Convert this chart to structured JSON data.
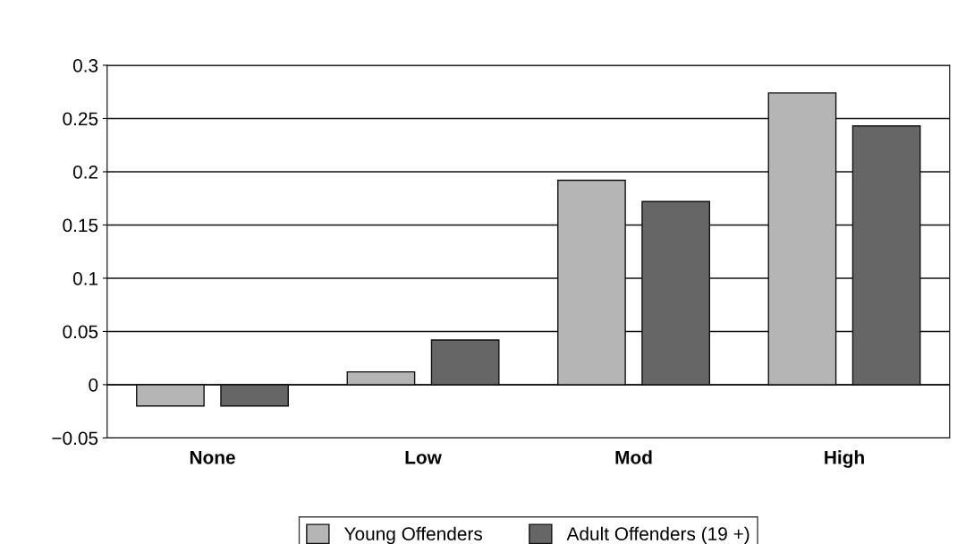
{
  "chart_data": {
    "type": "bar",
    "categories": [
      "None",
      "Low",
      "Mod",
      "High"
    ],
    "series": [
      {
        "name": "Young Offenders",
        "color": "#b5b5b5",
        "values": [
          -0.02,
          0.012,
          0.192,
          0.274
        ]
      },
      {
        "name": "Adult Offenders (19 +)",
        "color": "#666666",
        "values": [
          -0.02,
          0.042,
          0.172,
          0.243
        ]
      }
    ],
    "ylim": [
      -0.05,
      0.3
    ],
    "yticks": [
      {
        "value": -0.05,
        "label": "−0.05"
      },
      0,
      0.05,
      0.1,
      0.15,
      0.2,
      0.25,
      0.3
    ],
    "grid": "y",
    "legend": "bottom"
  }
}
